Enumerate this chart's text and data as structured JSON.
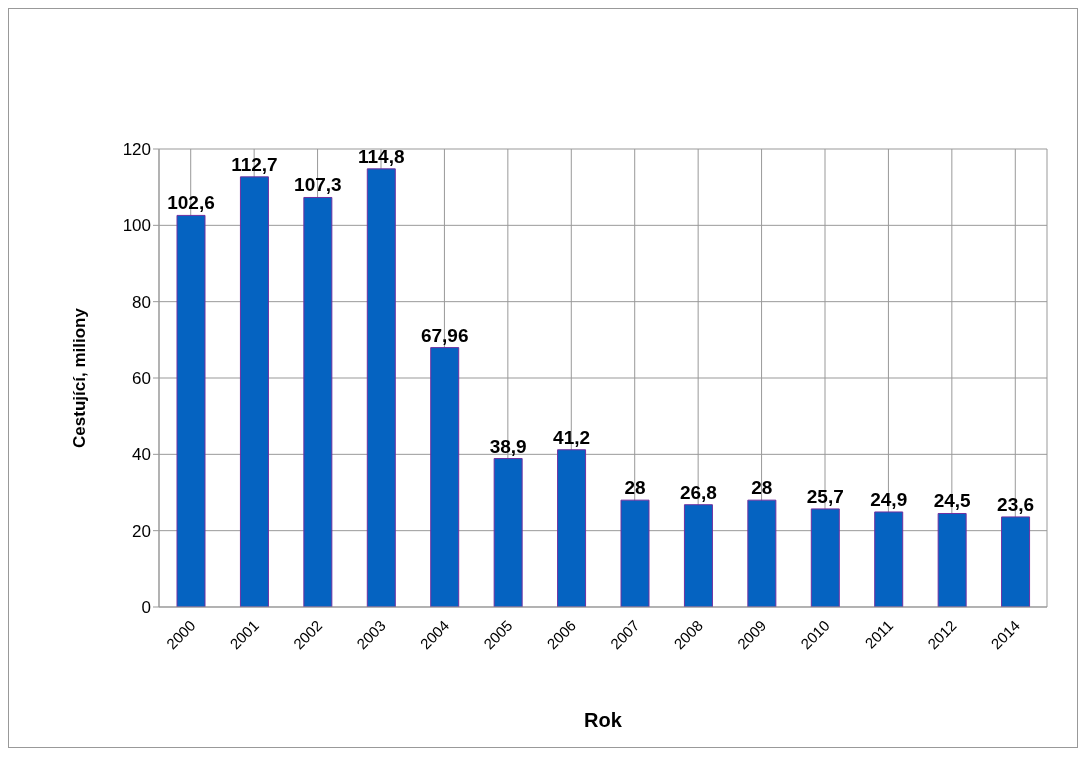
{
  "chart_data": {
    "type": "bar",
    "xlabel": "Rok",
    "ylabel": "Cestující, miliony",
    "categories": [
      "2000",
      "2001",
      "2002",
      "2003",
      "2004",
      "2005",
      "2006",
      "2007",
      "2008",
      "2009",
      "2010",
      "2011",
      "2012",
      "2014"
    ],
    "values": [
      102.6,
      112.7,
      107.3,
      114.8,
      67.96,
      38.9,
      41.2,
      28,
      26.8,
      28,
      25.7,
      24.9,
      24.5,
      23.6
    ],
    "value_labels": [
      "102,6",
      "112,7",
      "107,3",
      "114,8",
      "67,96",
      "38,9",
      "41,2",
      "28",
      "26,8",
      "28",
      "25,7",
      "24,9",
      "24,5",
      "23,6"
    ],
    "color": "#0563c1",
    "ylim": [
      0,
      120
    ],
    "yticks": [
      0,
      20,
      40,
      60,
      80,
      100,
      120
    ],
    "grid": true
  }
}
